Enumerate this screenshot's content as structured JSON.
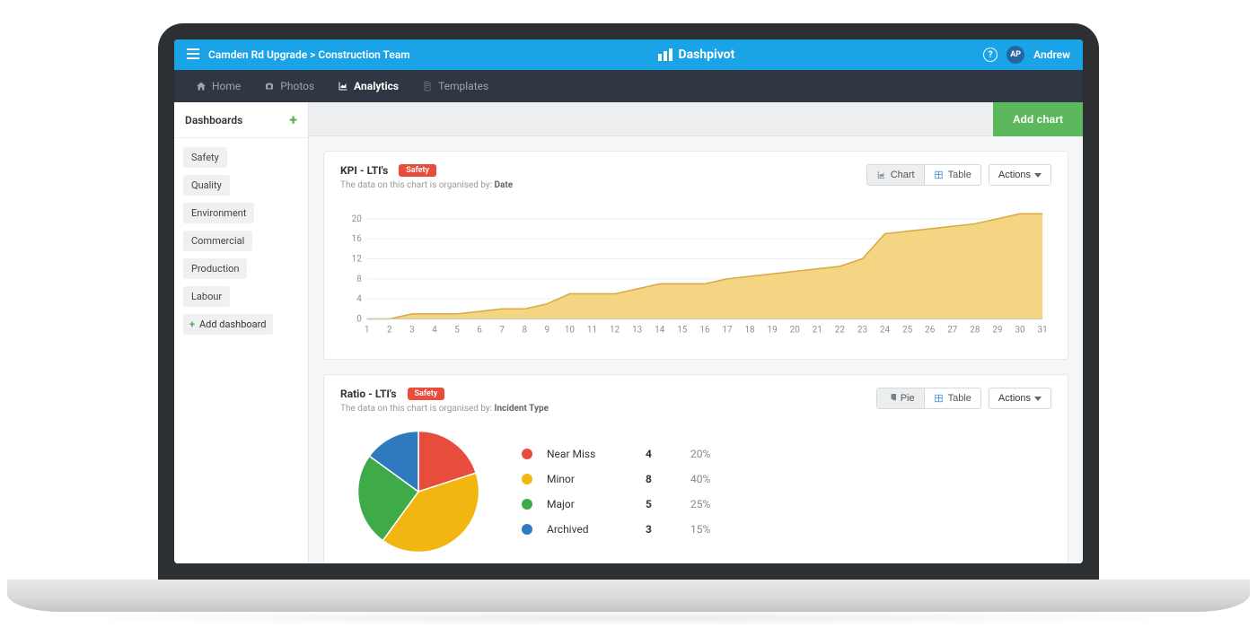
{
  "topbar": {
    "breadcrumb": "Camden Rd Upgrade > Construction Team",
    "brand": "Dashpivot",
    "user_initials": "AP",
    "user_name": "Andrew"
  },
  "nav": {
    "home": "Home",
    "photos": "Photos",
    "analytics": "Analytics",
    "templates": "Templates",
    "active": "analytics"
  },
  "sidebar": {
    "title": "Dashboards",
    "items": [
      "Safety",
      "Quality",
      "Environment",
      "Commercial",
      "Production",
      "Labour"
    ],
    "add_label": "Add dashboard"
  },
  "main_header": {
    "add_chart": "Add chart"
  },
  "card1": {
    "title": "KPI - LTI's",
    "badge": "Safety",
    "organised_prefix": "The data on this chart is organised by: ",
    "organised_by": "Date",
    "toggle_chart": "Chart",
    "toggle_table": "Table",
    "actions": "Actions",
    "chart": {
      "type": "area",
      "x_labels": [
        "1",
        "2",
        "3",
        "4",
        "5",
        "6",
        "7",
        "8",
        "9",
        "10",
        "11",
        "12",
        "13",
        "14",
        "15",
        "16",
        "17",
        "18",
        "19",
        "20",
        "21",
        "22",
        "23",
        "24",
        "25",
        "26",
        "27",
        "28",
        "29",
        "30",
        "31"
      ],
      "y_ticks": [
        0,
        4,
        8,
        12,
        16,
        20
      ],
      "y_lim": [
        0,
        22
      ],
      "values": [
        0,
        0,
        1,
        1,
        1,
        1.5,
        2,
        2,
        3,
        5,
        5,
        5,
        6,
        7,
        7,
        7,
        8,
        8.5,
        9,
        9.5,
        10,
        10.5,
        12,
        17,
        17.5,
        18,
        18.5,
        19,
        20,
        21,
        21
      ],
      "fill_color": "#f3d583",
      "stroke_color": "#d9a93e",
      "grid_color": "#ececec",
      "axis_text_color": "#8a8f94",
      "axis_fontsize": 10
    }
  },
  "card2": {
    "title": "Ratio - LTI's",
    "badge": "Safety",
    "organised_prefix": "The data on this chart is organised by: ",
    "organised_by": "Incident Type",
    "toggle_pie": "Pie",
    "toggle_table": "Table",
    "actions": "Actions",
    "chart": {
      "type": "pie",
      "slices": [
        {
          "label": "Near Miss",
          "count": 4,
          "pct": "20%",
          "color": "#e74c3c"
        },
        {
          "label": "Minor",
          "count": 8,
          "pct": "40%",
          "color": "#f1b60f"
        },
        {
          "label": "Major",
          "count": 5,
          "pct": "25%",
          "color": "#3fab48"
        },
        {
          "label": "Archived",
          "count": 3,
          "pct": "15%",
          "color": "#2f7abf"
        }
      ],
      "stroke": "#ffffff",
      "stroke_width": 1
    }
  }
}
